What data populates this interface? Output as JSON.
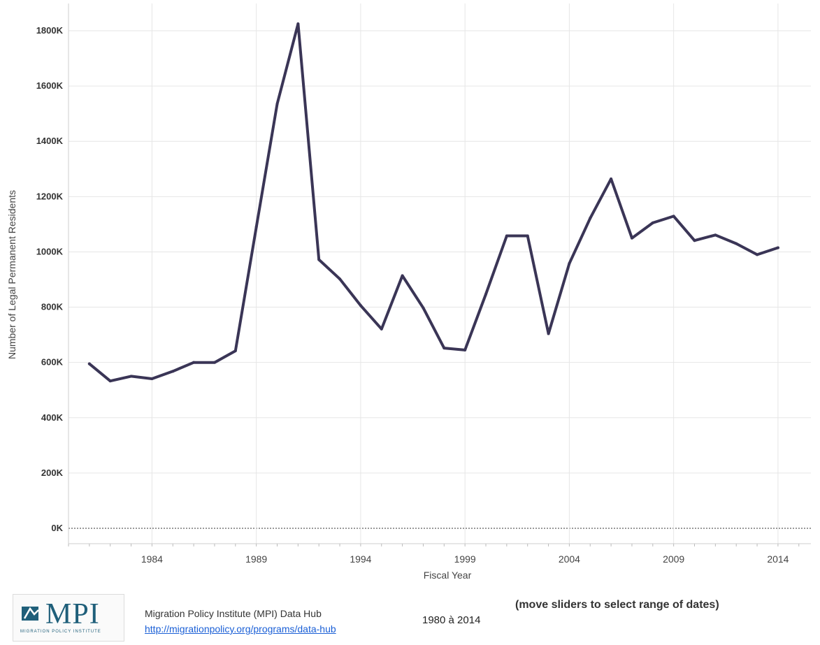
{
  "chart_data": {
    "type": "line",
    "title": "",
    "xlabel": "Fiscal Year",
    "ylabel": "Number of Legal Permanent Residents",
    "xlim": [
      1980,
      2015
    ],
    "ylim": [
      0,
      1850000
    ],
    "x_ticks": [
      1984,
      1989,
      1994,
      1999,
      2004,
      2009,
      2014
    ],
    "x_tick_labels": [
      "1984",
      "1989",
      "1994",
      "1999",
      "2004",
      "2009",
      "2014"
    ],
    "y_ticks": [
      0,
      200000,
      400000,
      600000,
      800000,
      1000000,
      1200000,
      1400000,
      1600000,
      1800000
    ],
    "y_tick_labels": [
      "0K",
      "200K",
      "400K",
      "600K",
      "800K",
      "1000K",
      "1200K",
      "1400K",
      "1600K",
      "1800K"
    ],
    "grid": true,
    "color": "#3a3556",
    "series": [
      {
        "x": [
          1981,
          1982,
          1983,
          1984,
          1985,
          1986,
          1987,
          1988,
          1989,
          1990,
          1991,
          1992,
          1993,
          1994,
          1995,
          1996,
          1997,
          1998,
          1999,
          2000,
          2001,
          2002,
          2003,
          2004,
          2005,
          2006,
          2007,
          2008,
          2009,
          2010,
          2011,
          2012,
          2013,
          2014
        ],
        "values": [
          595000,
          533000,
          550000,
          541000,
          568000,
          600000,
          600000,
          642000,
          1090000,
          1535000,
          1825000,
          972000,
          902000,
          806000,
          721000,
          914000,
          797000,
          652000,
          645000,
          847000,
          1058000,
          1058000,
          704000,
          958000,
          1122000,
          1264000,
          1050000,
          1105000,
          1129000,
          1041000,
          1061000,
          1030000,
          990000,
          1015000
        ]
      }
    ]
  },
  "footer": {
    "logo_text": "MPI",
    "logo_subtext": "MIGRATION POLICY INSTITUTE",
    "source_name": "Migration Policy Institute (MPI) Data Hub",
    "source_url": "http://migrationpolicy.org/programs/data-hub",
    "date_range": "1980 à 2014",
    "slider_note": "(move sliders to select range of dates)"
  }
}
